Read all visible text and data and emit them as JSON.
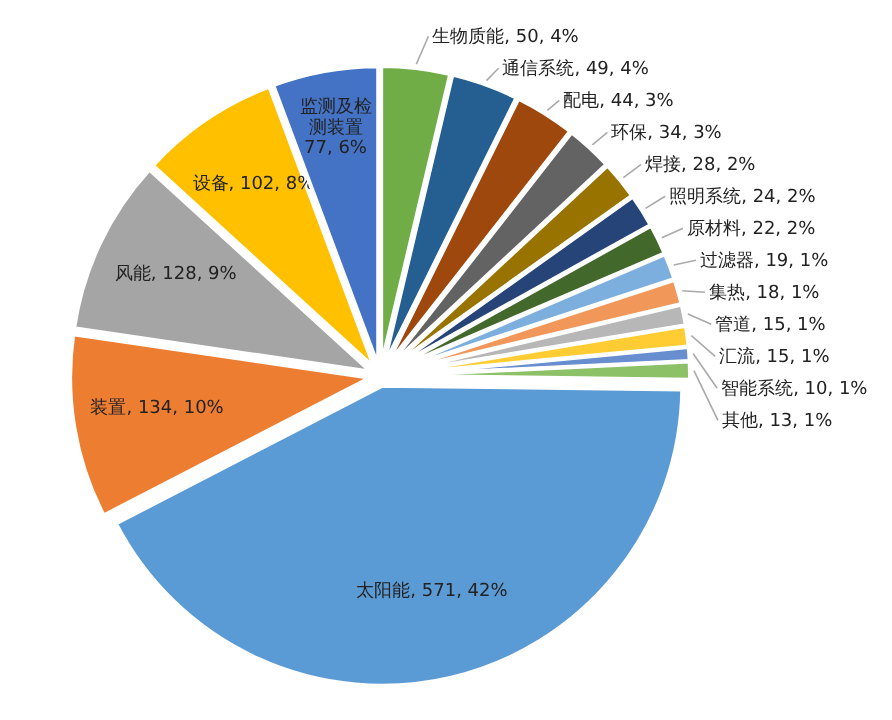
{
  "chart_data": {
    "type": "pie",
    "categories": [
      "生物质能",
      "通信系统",
      "配电",
      "环保",
      "焊接",
      "照明系统",
      "原材料",
      "过滤器",
      "集热",
      "管道",
      "汇流",
      "智能系统",
      "其他",
      "太阳能",
      "装置",
      "风能",
      "设备",
      "监测及检测装置"
    ],
    "values": [
      50,
      49,
      44,
      34,
      28,
      24,
      22,
      19,
      18,
      15,
      15,
      10,
      13,
      571,
      134,
      128,
      102,
      77
    ],
    "value_labels": [
      "50, 4%",
      "49, 4%",
      "44, 3%",
      "34, 3%",
      "28, 2%",
      "24, 2%",
      "22, 2%",
      "19, 1%",
      "18, 1%",
      "15, 1%",
      "15, 1%",
      "10, 1%",
      "13, 1%",
      "571, 42%",
      "134, 10%",
      "128, 9%",
      "102, 8%",
      "77, 6%"
    ],
    "colors": [
      "#70ad47",
      "#255e91",
      "#9e480e",
      "#636363",
      "#997300",
      "#264478",
      "#43682b",
      "#7cafdd",
      "#f1975a",
      "#b7b7b7",
      "#ffcd33",
      "#698ed0",
      "#8cc168",
      "#5b9bd5",
      "#ed7d31",
      "#a5a5a5",
      "#ffc000",
      "#4472c4"
    ]
  }
}
